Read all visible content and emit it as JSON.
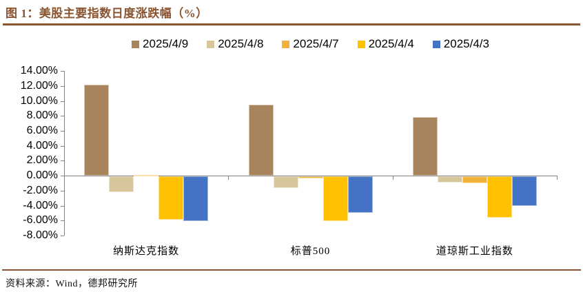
{
  "title": "图 1：美股主要指数日度涨跌幅（%）",
  "footer": {
    "source_label": "资料来源：Wind，德邦研究所"
  },
  "colors": {
    "brand_brown": "#8A5430",
    "axis_gray": "#808080",
    "text_black": "#000000"
  },
  "chart_data": {
    "type": "bar",
    "title": "美股主要指数日度涨跌幅（%）",
    "categories": [
      "纳斯达克指数",
      "标普500",
      "道琼斯工业指数"
    ],
    "series": [
      {
        "name": "2025/4/9",
        "color": "#A8845C",
        "values": [
          12.16,
          9.52,
          7.87
        ]
      },
      {
        "name": "2025/4/8",
        "color": "#D7C69B",
        "values": [
          -2.15,
          -1.57,
          -0.84
        ]
      },
      {
        "name": "2025/4/7",
        "color": "#F2B13A",
        "values": [
          0.1,
          -0.23,
          -0.91
        ]
      },
      {
        "name": "2025/4/4",
        "color": "#FFC000",
        "values": [
          -5.82,
          -5.97,
          -5.5
        ]
      },
      {
        "name": "2025/4/3",
        "color": "#4472C4",
        "values": [
          -5.97,
          -4.84,
          -3.98
        ]
      }
    ],
    "ylim": [
      -8,
      14
    ],
    "ytick_labels": [
      "14.00%",
      "12.00%",
      "10.00%",
      "8.00%",
      "6.00%",
      "4.00%",
      "2.00%",
      "0.00%",
      "-2.00%",
      "-4.00%",
      "-6.00%",
      "-8.00%"
    ],
    "legend_position": "top-center",
    "grid": false
  }
}
